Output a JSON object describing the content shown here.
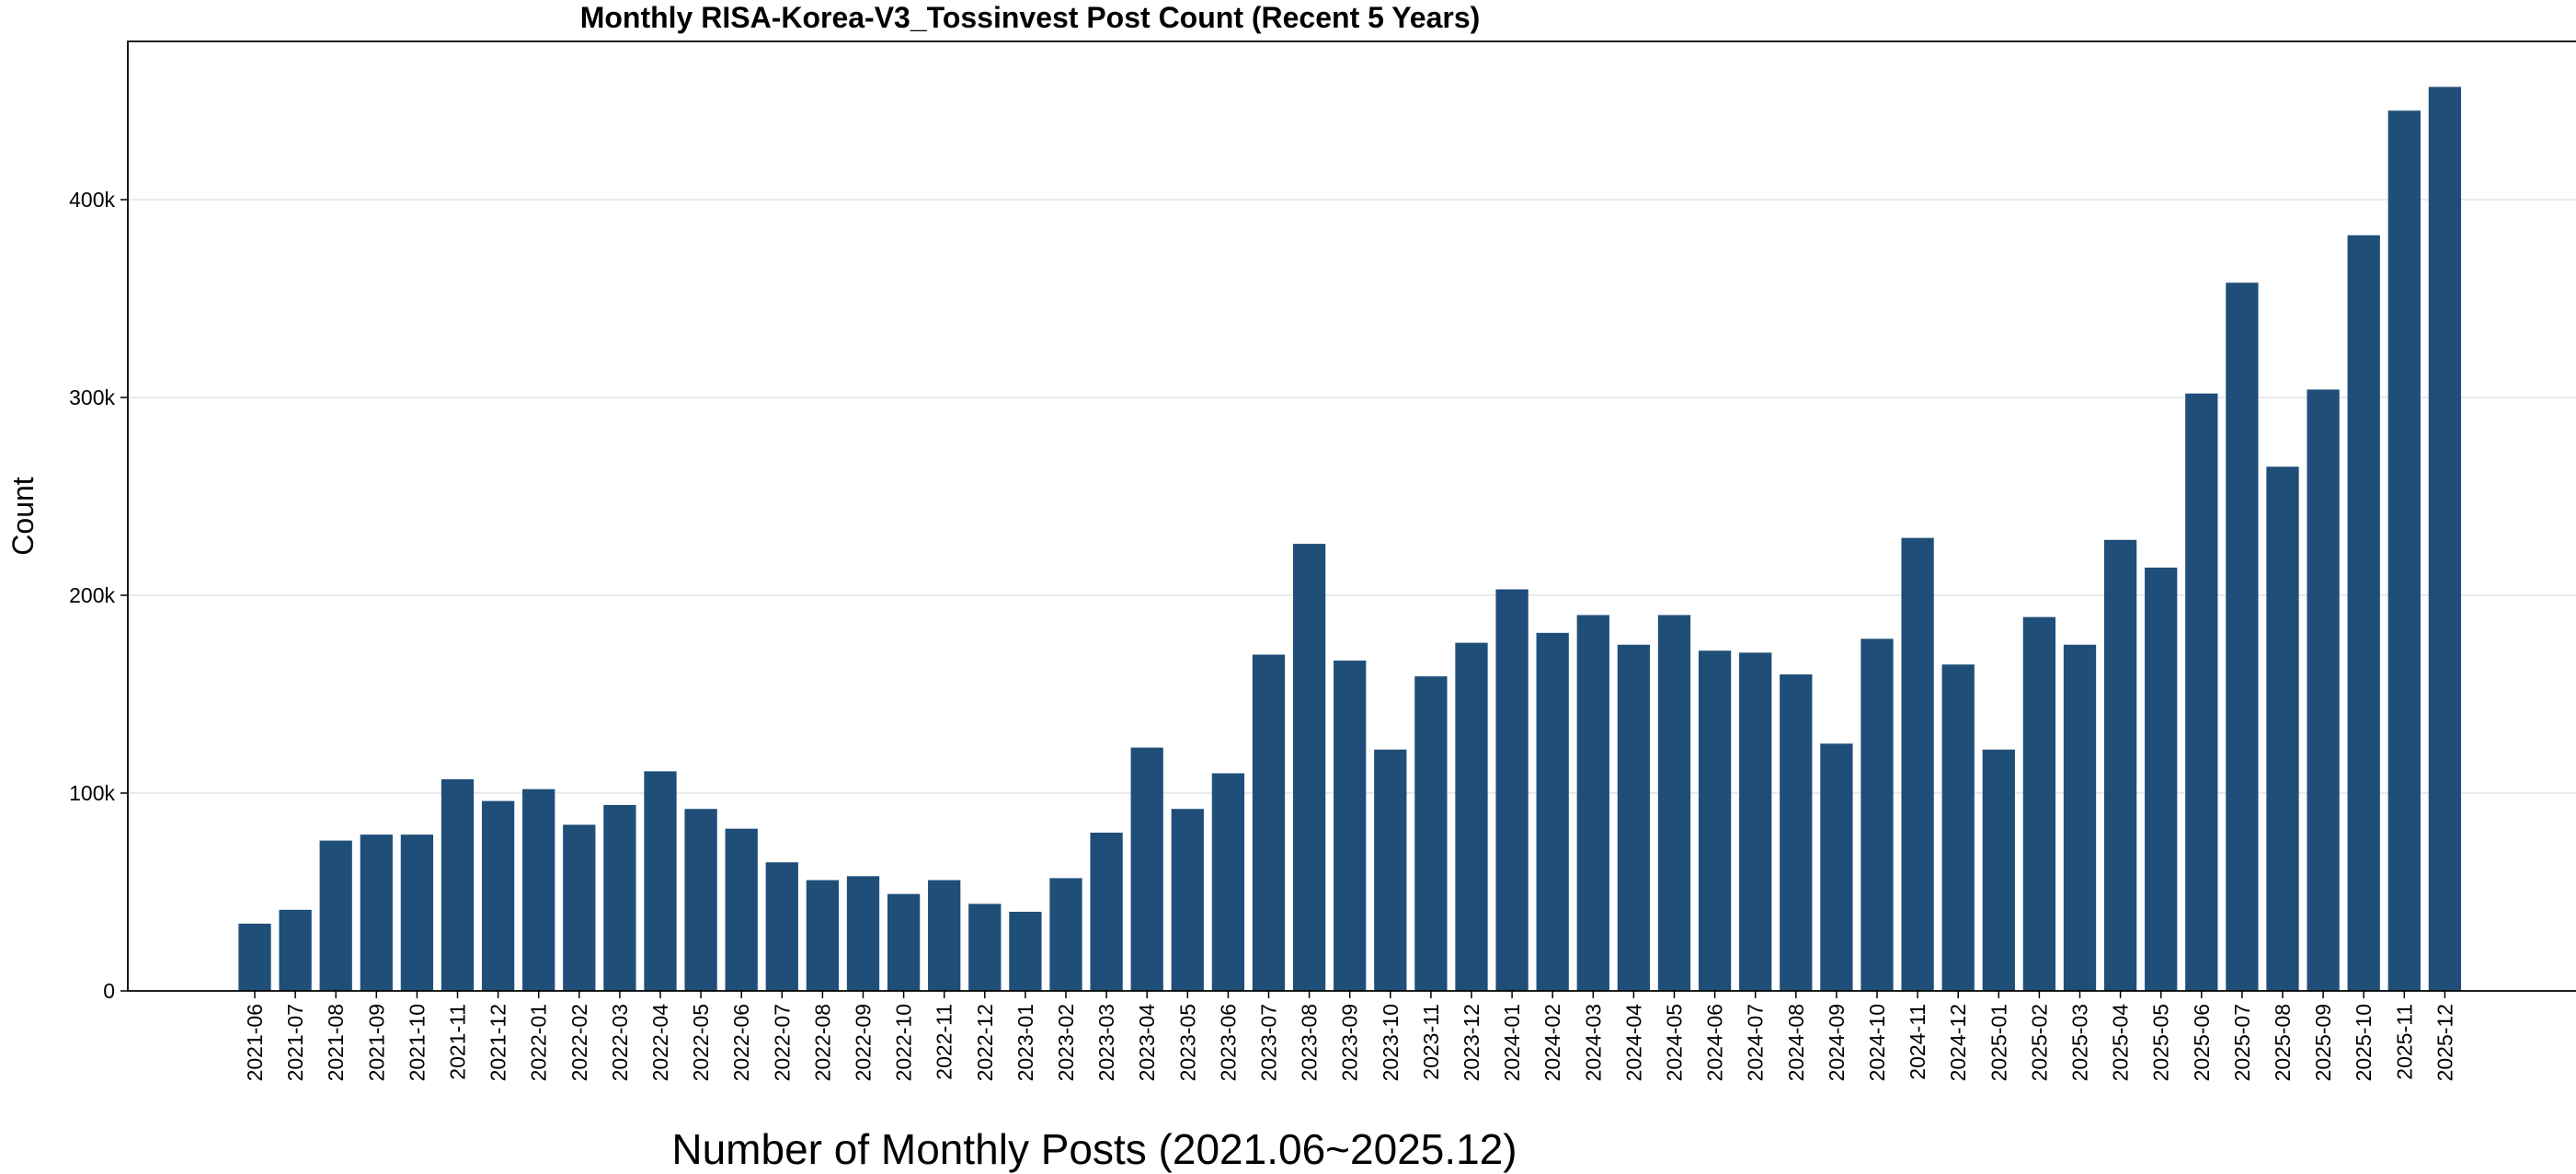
{
  "chart_data": {
    "type": "bar",
    "title": "Monthly RISA-Korea-V3_Tossinvest Post Count (Recent 5 Years)",
    "xlabel": "Number of Monthly Posts (2021.06~2025.12)",
    "ylabel": "Count",
    "categories": [
      "2021-06",
      "2021-07",
      "2021-08",
      "2021-09",
      "2021-10",
      "2021-11",
      "2021-12",
      "2022-01",
      "2022-02",
      "2022-03",
      "2022-04",
      "2022-05",
      "2022-06",
      "2022-07",
      "2022-08",
      "2022-09",
      "2022-10",
      "2022-11",
      "2022-12",
      "2023-01",
      "2023-02",
      "2023-03",
      "2023-04",
      "2023-05",
      "2023-06",
      "2023-07",
      "2023-08",
      "2023-09",
      "2023-10",
      "2023-11",
      "2023-12",
      "2024-01",
      "2024-02",
      "2024-03",
      "2024-04",
      "2024-05",
      "2024-06",
      "2024-07",
      "2024-08",
      "2024-09",
      "2024-10",
      "2024-11",
      "2024-12",
      "2025-01",
      "2025-02",
      "2025-03",
      "2025-04",
      "2025-05",
      "2025-06",
      "2025-07",
      "2025-08",
      "2025-09",
      "2025-10",
      "2025-11",
      "2025-12"
    ],
    "values": [
      34000,
      41000,
      76000,
      79000,
      79000,
      107000,
      96000,
      102000,
      84000,
      94000,
      111000,
      92000,
      82000,
      65000,
      56000,
      58000,
      49000,
      56000,
      44000,
      40000,
      57000,
      80000,
      123000,
      92000,
      110000,
      170000,
      226000,
      167000,
      122000,
      159000,
      176000,
      203000,
      181000,
      190000,
      175000,
      190000,
      172000,
      171000,
      160000,
      125000,
      178000,
      229000,
      165000,
      122000,
      189000,
      175000,
      228000,
      214000,
      302000,
      358000,
      265000,
      304000,
      382000,
      445000,
      457000
    ],
    "color": "#1f4e79",
    "ylim": [
      0,
      480000
    ],
    "yticks": [
      0,
      {
        "value": 100000,
        "label": "100k"
      },
      {
        "value": 200000,
        "label": "200k"
      },
      {
        "value": 300000,
        "label": "300k"
      },
      {
        "value": 400000,
        "label": "400k"
      }
    ],
    "grid": true
  }
}
